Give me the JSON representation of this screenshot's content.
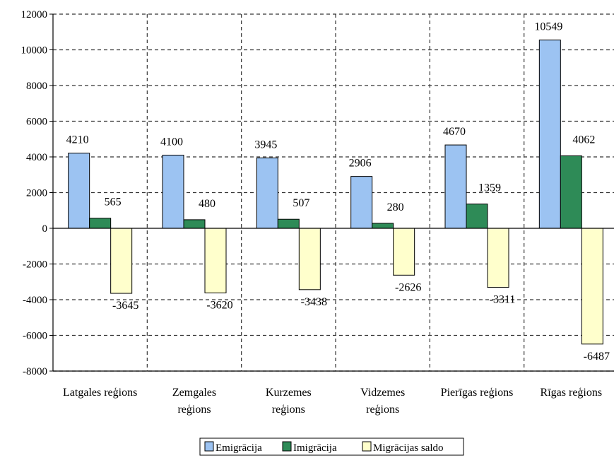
{
  "chart_data": {
    "type": "bar",
    "categories": [
      [
        "Latgales reģions"
      ],
      [
        "Zemgales",
        "reģions"
      ],
      [
        "Kurzemes",
        "reģions"
      ],
      [
        "Vidzemes",
        "reģions"
      ],
      [
        "Pierīgas reģions"
      ],
      [
        "Rīgas reģions"
      ]
    ],
    "series": [
      {
        "name": "Emigrācija",
        "values": [
          4210,
          4100,
          3945,
          2906,
          4670,
          10549
        ],
        "color": "#9cc3f2"
      },
      {
        "name": "Imigrācija",
        "values": [
          565,
          480,
          507,
          280,
          1359,
          4062
        ],
        "color": "#2e8b57"
      },
      {
        "name": "Migrācijas saldo",
        "values": [
          -3645,
          -3620,
          -3438,
          -2626,
          -3311,
          -6487
        ],
        "color": "#ffffcc"
      }
    ],
    "ylim": [
      -8000,
      12000
    ],
    "yticks": [
      "12000",
      "10000",
      "8000",
      "6000",
      "4000",
      "2000",
      "0",
      "-2000",
      "-4000",
      "-6000",
      "-8000"
    ],
    "grid": true,
    "legend_position": "bottom-center"
  }
}
